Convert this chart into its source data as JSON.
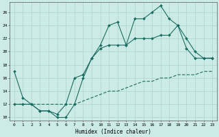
{
  "xlabel": "Humidex (Indice chaleur)",
  "bg_color": "#cceae6",
  "line_color": "#1a6b60",
  "grid_color": "#aad4ce",
  "xlim": [
    -0.5,
    23.5
  ],
  "ylim": [
    9.5,
    27.5
  ],
  "xtick_labels": [
    "0",
    "1",
    "2",
    "3",
    "4",
    "5",
    "6",
    "7",
    "8",
    "9",
    "10",
    "11",
    "12",
    "13",
    "14",
    "15",
    "16",
    "17",
    "18",
    "19",
    "20",
    "21",
    "22",
    "23"
  ],
  "ytick_vals": [
    10,
    12,
    14,
    16,
    18,
    20,
    22,
    24,
    26
  ],
  "line1_x": [
    0,
    1,
    2,
    3,
    4,
    5,
    6,
    7,
    8,
    9,
    10,
    11,
    12,
    13,
    14,
    15,
    16,
    17,
    18,
    19,
    20,
    21,
    22,
    23
  ],
  "line1_y": [
    17,
    13,
    12,
    11,
    11,
    10,
    10,
    12,
    16,
    19,
    21,
    24,
    24.5,
    21,
    25,
    25,
    26,
    27,
    25,
    24,
    20.5,
    19,
    19,
    19
  ],
  "line2_x": [
    0,
    1,
    2,
    3,
    4,
    5,
    6,
    7,
    8,
    9,
    10,
    11,
    12,
    13,
    14,
    15,
    16,
    17,
    18,
    19,
    20,
    21,
    22,
    23
  ],
  "line2_y": [
    12,
    12,
    12,
    11,
    11,
    10.5,
    12,
    16,
    16.5,
    19,
    20.5,
    21,
    21,
    21,
    22,
    22,
    22,
    22.5,
    22.5,
    24,
    22,
    20,
    19,
    19
  ],
  "line3_x": [
    0,
    1,
    2,
    3,
    4,
    5,
    6,
    7,
    8,
    9,
    10,
    11,
    12,
    13,
    14,
    15,
    16,
    17,
    18,
    19,
    20,
    21,
    22,
    23
  ],
  "line3_y": [
    12,
    12,
    12,
    12,
    12,
    12,
    12,
    12,
    12.5,
    13,
    13.5,
    14,
    14,
    14.5,
    15,
    15.5,
    15.5,
    16,
    16,
    16.5,
    16.5,
    16.5,
    17,
    17
  ]
}
